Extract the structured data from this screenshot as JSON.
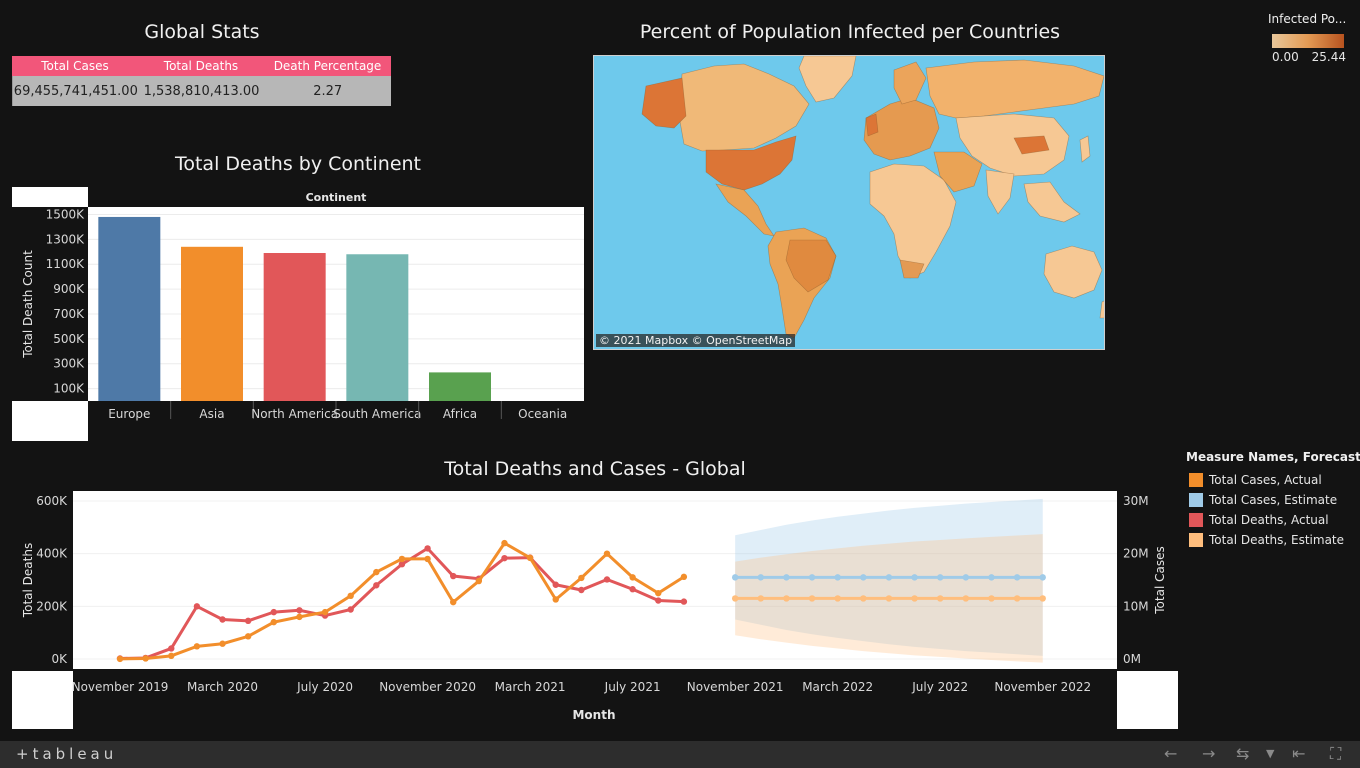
{
  "global_stats": {
    "title": "Global Stats",
    "headers": [
      "Total Cases",
      "Total Deaths",
      "Death Percentage"
    ],
    "values": [
      "69,455,741,451.00",
      "1,538,810,413.00",
      "2.27"
    ]
  },
  "map": {
    "title": "Percent of Population Infected per Countries",
    "credit": "© 2021 Mapbox  © OpenStreetMap",
    "legend_title": "Infected Po...",
    "legend_min": "0.00",
    "legend_max": "25.44",
    "colors": {
      "ocean": "#6ec9ec",
      "low": "#f6c894",
      "mid": "#eaa355",
      "high": "#dc7536"
    }
  },
  "chart_data": [
    {
      "type": "bar",
      "title": "Total Deaths by Continent",
      "header": "Continent",
      "categories": [
        "Europe",
        "Asia",
        "North America",
        "South America",
        "Africa",
        "Oceania"
      ],
      "values": [
        1480000,
        1240000,
        1190000,
        1180000,
        230000,
        0
      ],
      "colors": [
        "#4e79a7",
        "#f28e2b",
        "#e15759",
        "#76b7b2",
        "#59a14f",
        "#edc948"
      ],
      "ylabel": "Total Death Count",
      "yticks": [
        "1500K",
        "1300K",
        "1100K",
        "900K",
        "700K",
        "500K",
        "300K",
        "100K"
      ],
      "ytick_values": [
        1500000,
        1300000,
        1100000,
        900000,
        700000,
        500000,
        300000,
        100000
      ],
      "ylim": [
        0,
        1560000
      ]
    },
    {
      "type": "line",
      "title": "Total Deaths and Cases - Global",
      "xlabel": "Month",
      "ylabel_left": "Total Deaths",
      "ylabel_right": "Total Cases",
      "xticks": [
        "November 2019",
        "March 2020",
        "July 2020",
        "November 2020",
        "March 2021",
        "July 2021",
        "November 2021",
        "March 2022",
        "July 2022",
        "November 2022"
      ],
      "xtick_months": [
        0,
        4,
        8,
        12,
        16,
        20,
        24,
        28,
        32,
        36
      ],
      "yticks_left": [
        "600K",
        "400K",
        "200K",
        "0K"
      ],
      "ytick_left_values": [
        600000,
        400000,
        200000,
        0
      ],
      "yticks_right": [
        "30M",
        "20M",
        "10M",
        "0M"
      ],
      "ytick_right_values": [
        30000000,
        20000000,
        10000000,
        0
      ],
      "ylim_left": [
        0,
        600000
      ],
      "ylim_right": [
        0,
        30000000
      ],
      "legend_title": "Measure Names, Forecast ...",
      "series": [
        {
          "name": "Total Cases, Actual",
          "color": "#f28e2b",
          "axis": "right",
          "start_month": 0,
          "values": [
            0.02,
            0.1,
            0.6,
            2.4,
            2.9,
            4.3,
            7.0,
            8.0,
            8.9,
            12.0,
            16.5,
            19.0,
            19.0,
            10.8,
            14.8,
            22.0,
            19.2,
            11.3,
            15.4,
            20.0,
            15.5,
            12.5,
            15.6
          ]
        },
        {
          "name": "Total Deaths, Actual",
          "color": "#e15759",
          "axis": "left",
          "start_month": 0,
          "values": [
            2000,
            4000,
            40000,
            200000,
            150000,
            145000,
            178000,
            185000,
            165000,
            188000,
            280000,
            360000,
            420000,
            315000,
            305000,
            383000,
            385000,
            282000,
            262000,
            302000,
            265000,
            222000,
            218000
          ]
        },
        {
          "name": "Total Cases, Estimate",
          "color": "#a0cbe8",
          "axis": "right",
          "start_month": 24,
          "values": [
            15.5,
            15.5,
            15.5,
            15.5,
            15.5,
            15.5,
            15.5,
            15.5,
            15.5,
            15.5,
            15.5,
            15.5,
            15.5
          ],
          "band_upper": [
            23.5,
            24.5,
            25.5,
            26.3,
            27.0,
            27.6,
            28.2,
            28.7,
            29.1,
            29.5,
            29.8,
            30.1,
            30.4
          ],
          "band_lower": [
            7.5,
            6.5,
            5.5,
            4.7,
            4.0,
            3.4,
            2.8,
            2.3,
            1.9,
            1.5,
            1.2,
            0.9,
            0.6
          ]
        },
        {
          "name": "Total Deaths, Estimate",
          "color": "#ffbe7d",
          "axis": "left",
          "start_month": 24,
          "values": [
            230000,
            230000,
            230000,
            230000,
            230000,
            230000,
            230000,
            230000,
            230000,
            230000,
            230000,
            230000,
            230000
          ],
          "band_upper": [
            370000,
            385000,
            398000,
            410000,
            420000,
            430000,
            438000,
            446000,
            452000,
            458000,
            464000,
            469000,
            474000
          ],
          "band_lower": [
            90000,
            75000,
            62000,
            50000,
            40000,
            30000,
            22000,
            14000,
            8000,
            2000,
            -4000,
            -9000,
            -14000
          ]
        }
      ]
    }
  ],
  "footer": {
    "logo": "+tableau"
  }
}
